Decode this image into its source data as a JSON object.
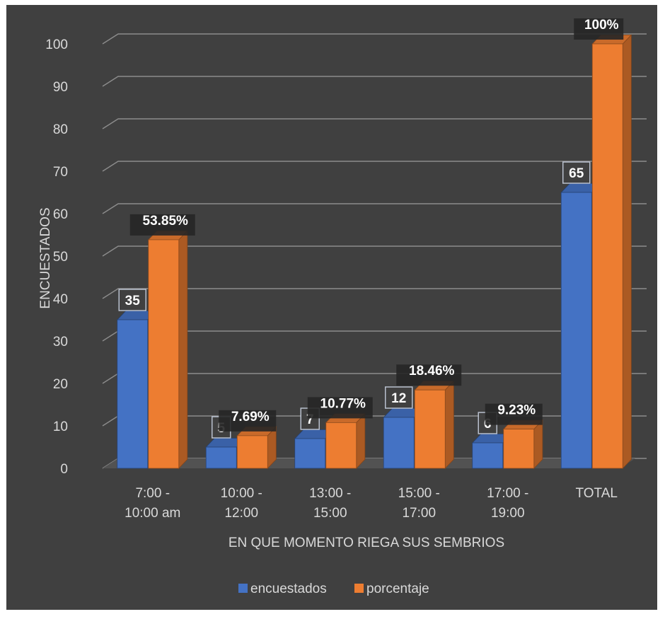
{
  "chart_data": {
    "type": "bar",
    "title": "",
    "xlabel": "EN QUE MOMENTO RIEGA SUS SEMBRIOS",
    "ylabel": "ENCUESTADOS",
    "ylim": [
      0,
      100
    ],
    "y_ticks": [
      "0",
      "10",
      "20",
      "30",
      "40",
      "50",
      "60",
      "70",
      "80",
      "90",
      "100"
    ],
    "grid": true,
    "legend_position": "bottom",
    "categories": [
      [
        "7:00 -",
        "10:00 am"
      ],
      [
        "10:00 -",
        "12:00"
      ],
      [
        "13:00 -",
        "15:00"
      ],
      [
        "15:00 -",
        "17:00"
      ],
      [
        "17:00 -",
        "19:00"
      ],
      [
        "TOTAL"
      ]
    ],
    "series": [
      {
        "name": "encuestados",
        "color": "#4472c4",
        "values": [
          35,
          5,
          7,
          12,
          6,
          65
        ],
        "labels": [
          "35",
          "5",
          "7",
          "12",
          "6",
          "65"
        ]
      },
      {
        "name": "porcentaje",
        "color": "#ed7d31",
        "values": [
          53.85,
          7.69,
          10.77,
          18.46,
          9.23,
          100
        ],
        "labels": [
          "53.85%",
          "7.69%",
          "10.77%",
          "18.46%",
          "9.23%",
          "100%"
        ]
      }
    ]
  }
}
